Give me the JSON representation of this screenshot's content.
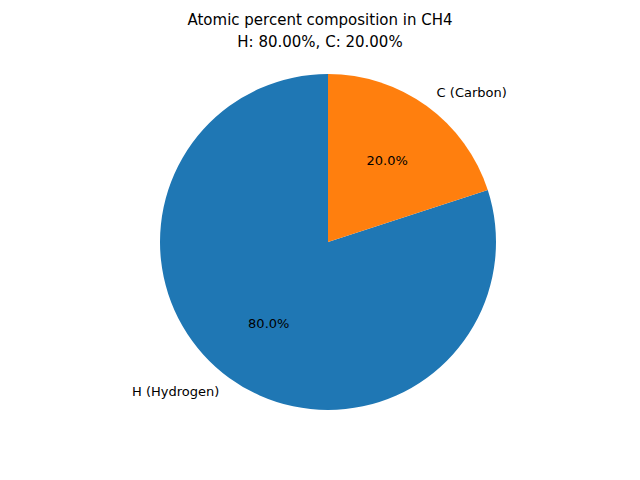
{
  "chart_data": {
    "type": "pie",
    "title": "Atomic percent composition in CH4\nH: 80.00%, C: 20.00%",
    "categories": [
      "H (Hydrogen)",
      "C (Carbon)"
    ],
    "values": [
      80,
      20
    ],
    "value_labels": [
      "80.0%",
      "20.0%"
    ],
    "colors": [
      "#1f77b4",
      "#ff7f0e"
    ],
    "data_labels": true
  }
}
